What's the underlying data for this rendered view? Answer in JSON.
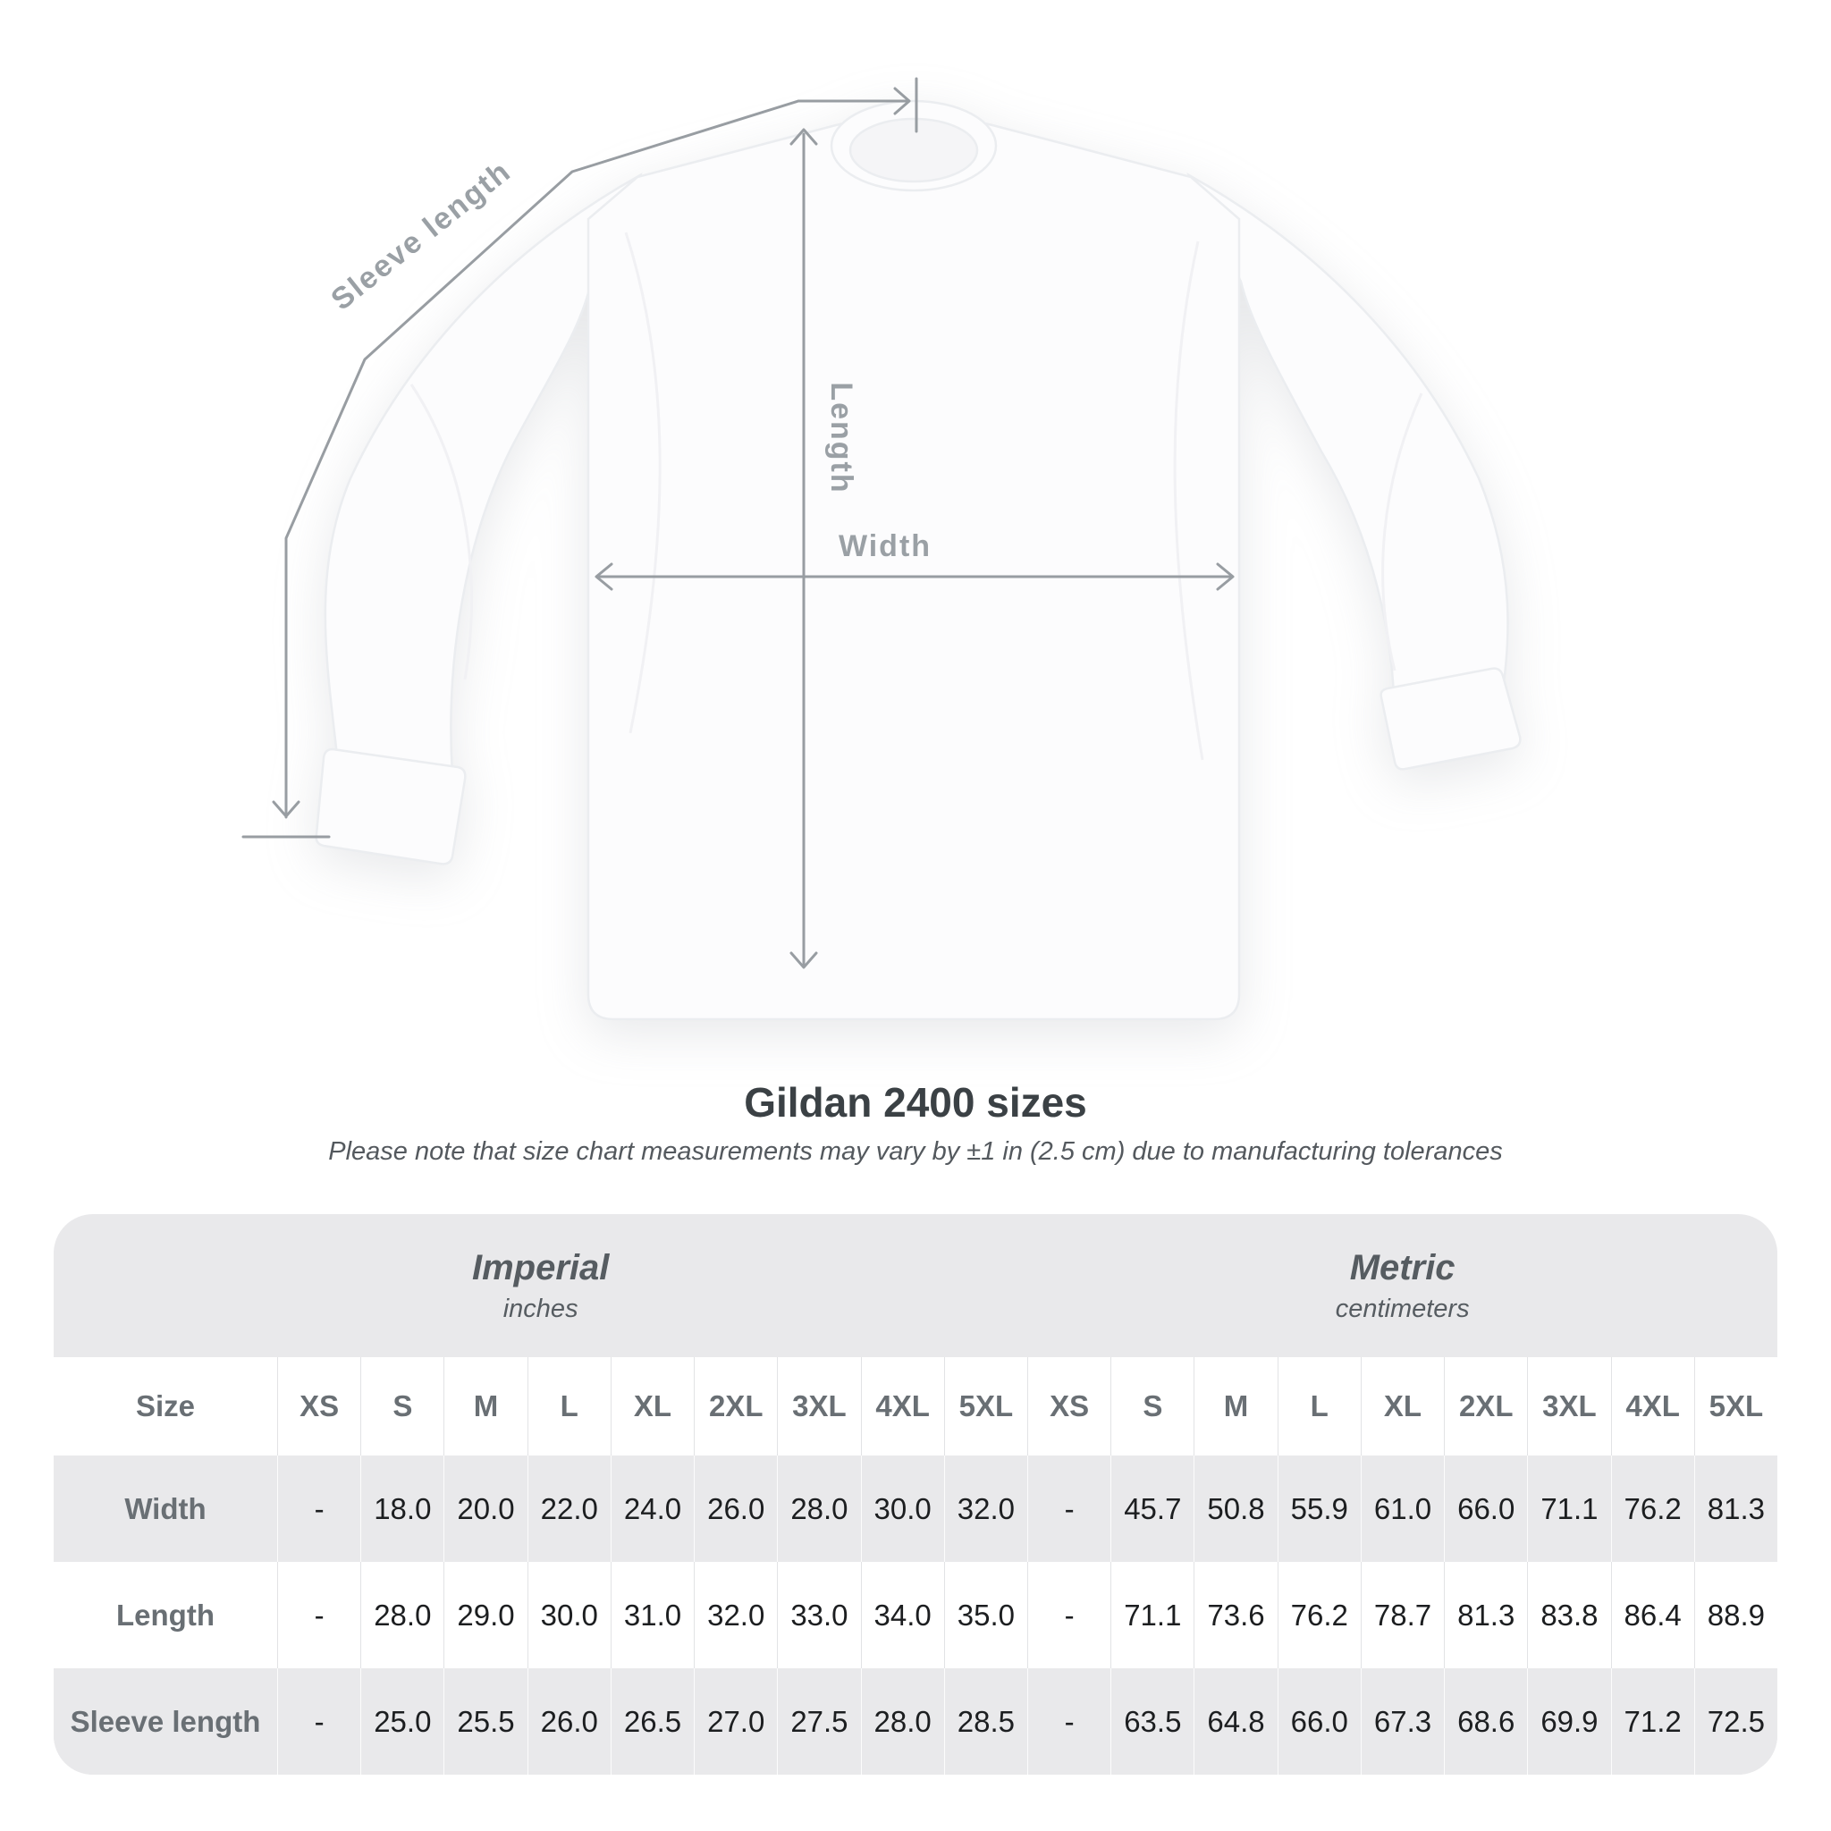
{
  "title": "Gildan 2400 sizes",
  "subtitle": "Please note that size chart measurements may vary by ±1 in (2.5 cm) due to manufacturing tolerances",
  "diagram": {
    "sleeve_length_label": "Sleeve length",
    "length_label": "Length",
    "width_label": "Width"
  },
  "table": {
    "groups": [
      {
        "name": "Imperial",
        "unit": "inches"
      },
      {
        "name": "Metric",
        "unit": "centimeters"
      }
    ],
    "size_header": "Size",
    "sizes": [
      "XS",
      "S",
      "M",
      "L",
      "XL",
      "2XL",
      "3XL",
      "4XL",
      "5XL"
    ],
    "rows": [
      {
        "label": "Width",
        "imperial": [
          "-",
          "18.0",
          "20.0",
          "22.0",
          "24.0",
          "26.0",
          "28.0",
          "30.0",
          "32.0"
        ],
        "metric": [
          "-",
          "45.7",
          "50.8",
          "55.9",
          "61.0",
          "66.0",
          "71.1",
          "76.2",
          "81.3"
        ]
      },
      {
        "label": "Length",
        "imperial": [
          "-",
          "28.0",
          "29.0",
          "30.0",
          "31.0",
          "32.0",
          "33.0",
          "34.0",
          "35.0"
        ],
        "metric": [
          "-",
          "71.1",
          "73.6",
          "76.2",
          "78.7",
          "81.3",
          "83.8",
          "86.4",
          "88.9"
        ]
      },
      {
        "label": "Sleeve length",
        "imperial": [
          "-",
          "25.0",
          "25.5",
          "26.0",
          "26.5",
          "27.0",
          "27.5",
          "28.0",
          "28.5"
        ],
        "metric": [
          "-",
          "63.5",
          "64.8",
          "66.0",
          "67.3",
          "68.6",
          "69.9",
          "71.2",
          "72.5"
        ]
      }
    ]
  },
  "colors": {
    "card_background": "#e9e9eb",
    "measure_line": "#989da2",
    "measure_label": "#9aa0a5",
    "title_text": "#3b4145",
    "value_text": "#1c1e20",
    "header_text": "#696f74",
    "shirt_fill": "#fcfcfd"
  }
}
